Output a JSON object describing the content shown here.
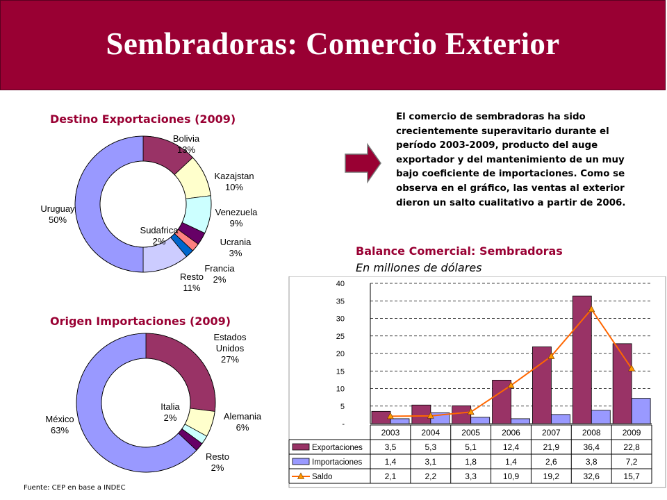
{
  "slide": {
    "title": "Sembradoras: Comercio Exterior",
    "paragraph": "El comercio de sembradoras ha sido crecientemente superavitario durante el período 2003-2009, producto del auge exportador y del mantenimiento de un muy bajo coeficiente de importaciones. Como se observa en el gráfico, las ventas al exterior dieron un salto cualitativo a partir de 2006.",
    "footer": "Fuente: CEP en base a INDEC"
  },
  "colors": {
    "brand": "#990033",
    "exportaciones": "#993366",
    "importaciones": "#9999ff",
    "saldo_line": "#ff6600",
    "saldo_marker": "#ff9900"
  },
  "chart_data": [
    {
      "type": "pie",
      "title": "Destino Exportaciones (2009)",
      "slices": [
        {
          "label": "Bolivia",
          "value": 13,
          "pct": "13%",
          "color": "#993366"
        },
        {
          "label": "Kazajstan",
          "value": 10,
          "pct": "10%",
          "color": "#ffffcc"
        },
        {
          "label": "Venezuela",
          "value": 9,
          "pct": "9%",
          "color": "#ccffff"
        },
        {
          "label": "Ucrania",
          "value": 3,
          "pct": "3%",
          "color": "#660066"
        },
        {
          "label": "Sudafrica",
          "value": 2,
          "pct": "2%",
          "color": "#ff8080"
        },
        {
          "label": "Francia",
          "value": 2,
          "pct": "2%",
          "color": "#0066cc"
        },
        {
          "label": "Resto",
          "value": 11,
          "pct": "11%",
          "color": "#ccccff"
        },
        {
          "label": "Uruguay",
          "value": 50,
          "pct": "50%",
          "color": "#9999ff"
        }
      ]
    },
    {
      "type": "pie",
      "title": "Origen Importaciones (2009)",
      "slices": [
        {
          "label": "Estados Unidos",
          "label_lines": [
            "Estados",
            "Unidos"
          ],
          "value": 27,
          "pct": "27%",
          "color": "#993366"
        },
        {
          "label": "Alemania",
          "value": 6,
          "pct": "6%",
          "color": "#ffffcc"
        },
        {
          "label": "Italia",
          "value": 2,
          "pct": "2%",
          "color": "#ccffff"
        },
        {
          "label": "Resto",
          "value": 2,
          "pct": "2%",
          "color": "#660066"
        },
        {
          "label": "México",
          "value": 63,
          "pct": "63%",
          "color": "#9999ff"
        }
      ]
    },
    {
      "type": "bar",
      "title": "Balance Comercial: Sembradoras",
      "subtitle": "En millones de dólares",
      "categories": [
        "2003",
        "2004",
        "2005",
        "2006",
        "2007",
        "2008",
        "2009"
      ],
      "ylim": [
        0,
        40
      ],
      "yticks": [
        "-",
        "5",
        "10",
        "15",
        "20",
        "25",
        "30",
        "35",
        "40"
      ],
      "grid": true,
      "series": [
        {
          "name": "Exportaciones",
          "kind": "bar",
          "values": [
            3.5,
            5.3,
            5.1,
            12.4,
            21.9,
            36.4,
            22.8
          ],
          "labels": [
            "3,5",
            "5,3",
            "5,1",
            "12,4",
            "21,9",
            "36,4",
            "22,8"
          ]
        },
        {
          "name": "Importaciones",
          "kind": "bar",
          "values": [
            1.4,
            3.1,
            1.8,
            1.4,
            2.6,
            3.8,
            7.2
          ],
          "labels": [
            "1,4",
            "3,1",
            "1,8",
            "1,4",
            "2,6",
            "3,8",
            "7,2"
          ]
        },
        {
          "name": "Saldo",
          "kind": "line",
          "values": [
            2.1,
            2.2,
            3.3,
            10.9,
            19.2,
            32.6,
            15.7
          ],
          "labels": [
            "2,1",
            "2,2",
            "3,3",
            "10,9",
            "19,2",
            "32,6",
            "15,7"
          ]
        }
      ]
    }
  ]
}
